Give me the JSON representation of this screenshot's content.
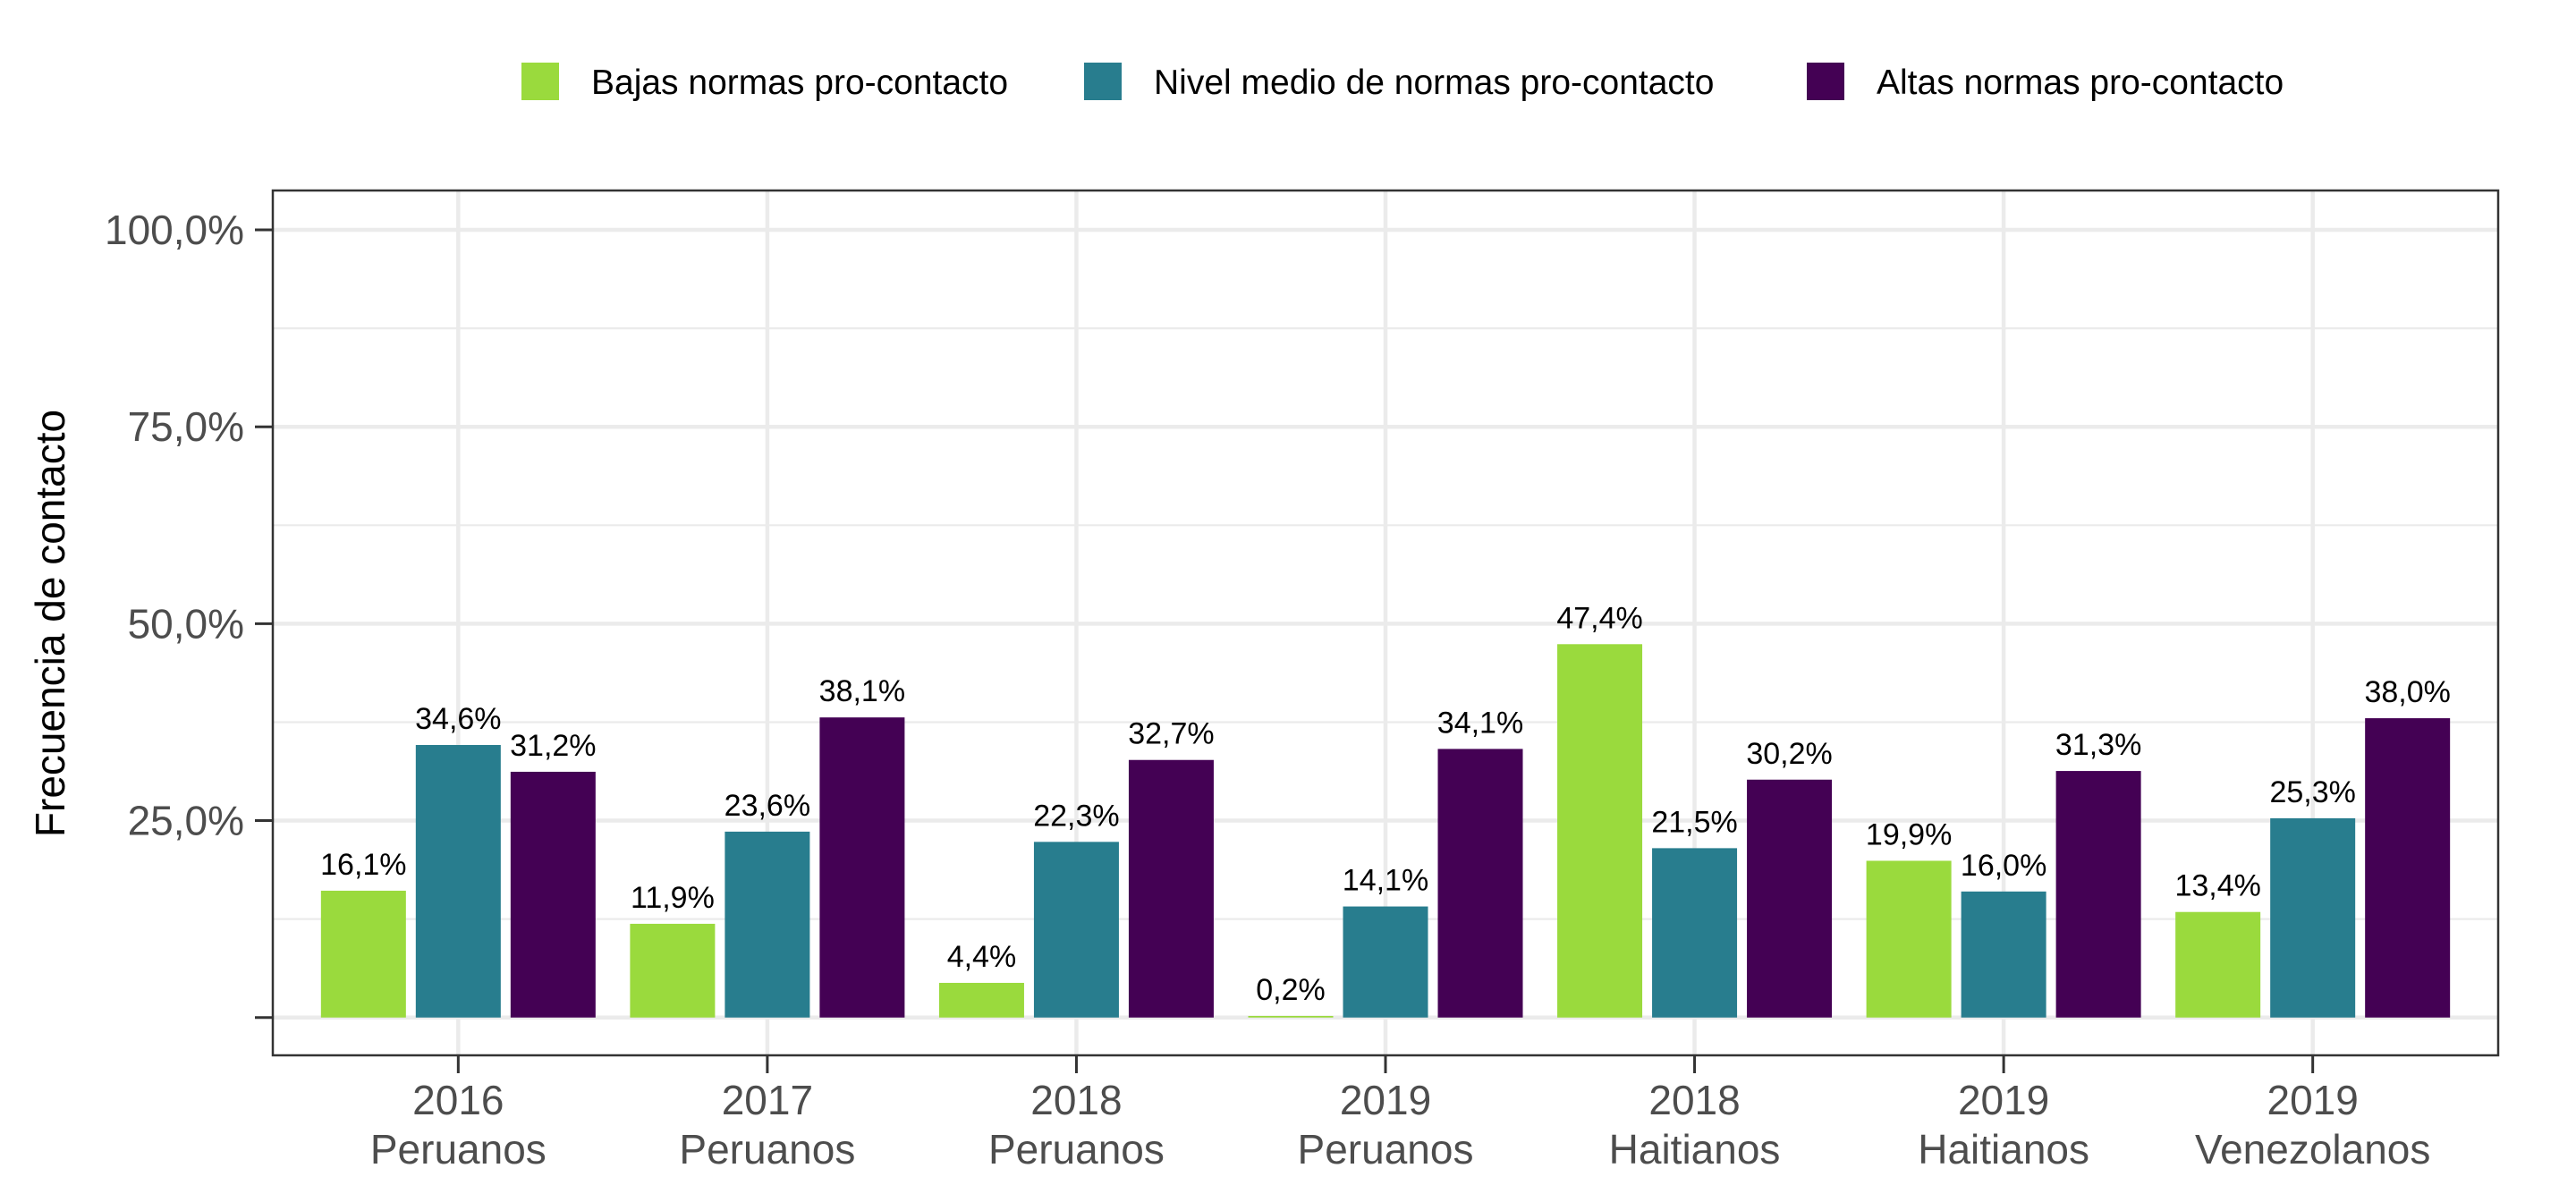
{
  "chart_data": {
    "type": "bar",
    "categories": [
      [
        "2016",
        "Peruanos"
      ],
      [
        "2017",
        "Peruanos"
      ],
      [
        "2018",
        "Peruanos"
      ],
      [
        "2019",
        "Peruanos"
      ],
      [
        "2018",
        "Haitianos"
      ],
      [
        "2019",
        "Haitianos"
      ],
      [
        "2019",
        "Venezolanos"
      ]
    ],
    "series": [
      {
        "name": "Bajas normas pro-contacto",
        "color": "#9ADA3D",
        "values": [
          16.1,
          11.9,
          4.4,
          0.2,
          47.4,
          19.9,
          13.4
        ],
        "labels": [
          "16,1%",
          "11,9%",
          "4,4%",
          "0,2%",
          "47,4%",
          "19,9%",
          "13,4%"
        ]
      },
      {
        "name": "Nivel medio de normas pro-contacto",
        "color": "#287D8E",
        "values": [
          34.6,
          23.6,
          22.3,
          14.1,
          21.5,
          16.0,
          25.3
        ],
        "labels": [
          "34,6%",
          "23,6%",
          "22,3%",
          "14,1%",
          "21,5%",
          "16,0%",
          "25,3%"
        ]
      },
      {
        "name": "Altas normas pro-contacto",
        "color": "#440154",
        "values": [
          31.2,
          38.1,
          32.7,
          34.1,
          30.2,
          31.3,
          38.0
        ],
        "labels": [
          "31,2%",
          "38,1%",
          "32,7%",
          "34,1%",
          "30,2%",
          "31,3%",
          "38,0%"
        ]
      }
    ],
    "xlabel": "",
    "ylabel": "Frecuencia de contacto",
    "ylim": [
      -4.8,
      105
    ],
    "yticks": [
      0,
      25,
      50,
      75,
      100
    ],
    "ytick_labels": [
      "",
      "25,0%",
      "50,0%",
      "75,0%",
      "100,0%"
    ],
    "grid": true,
    "legend_position": "top"
  }
}
